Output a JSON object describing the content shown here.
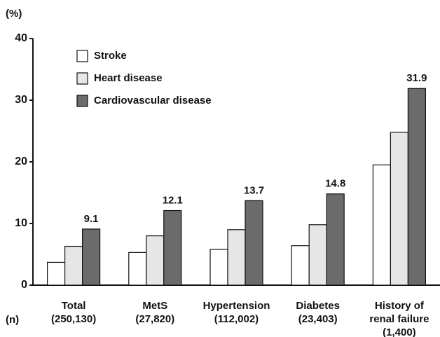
{
  "chart_data": {
    "type": "bar",
    "y_label": "(%)",
    "x_label": "(n)",
    "categories": [
      [
        "Total",
        "(250,130)"
      ],
      [
        "MetS",
        "(27,820)"
      ],
      [
        "Hypertension",
        "(112,002)"
      ],
      [
        "Diabetes",
        "(23,403)"
      ],
      [
        "History of",
        "renal failure",
        "(1,400)"
      ]
    ],
    "series": [
      {
        "name": "Stroke",
        "color": "#ffffff",
        "values": [
          3.7,
          5.3,
          5.8,
          6.4,
          19.5
        ]
      },
      {
        "name": "Heart disease",
        "color": "#e6e6e6",
        "values": [
          6.3,
          8.0,
          9.0,
          9.8,
          24.8
        ]
      },
      {
        "name": "Cardiovascular disease",
        "color": "#6b6b6b",
        "values": [
          9.1,
          12.1,
          13.7,
          14.8,
          31.9
        ],
        "show_labels": true
      }
    ],
    "ylim": [
      0,
      40
    ],
    "yticks": [
      0,
      10,
      20,
      30,
      40
    ],
    "grid": false,
    "legend": "upper left"
  }
}
